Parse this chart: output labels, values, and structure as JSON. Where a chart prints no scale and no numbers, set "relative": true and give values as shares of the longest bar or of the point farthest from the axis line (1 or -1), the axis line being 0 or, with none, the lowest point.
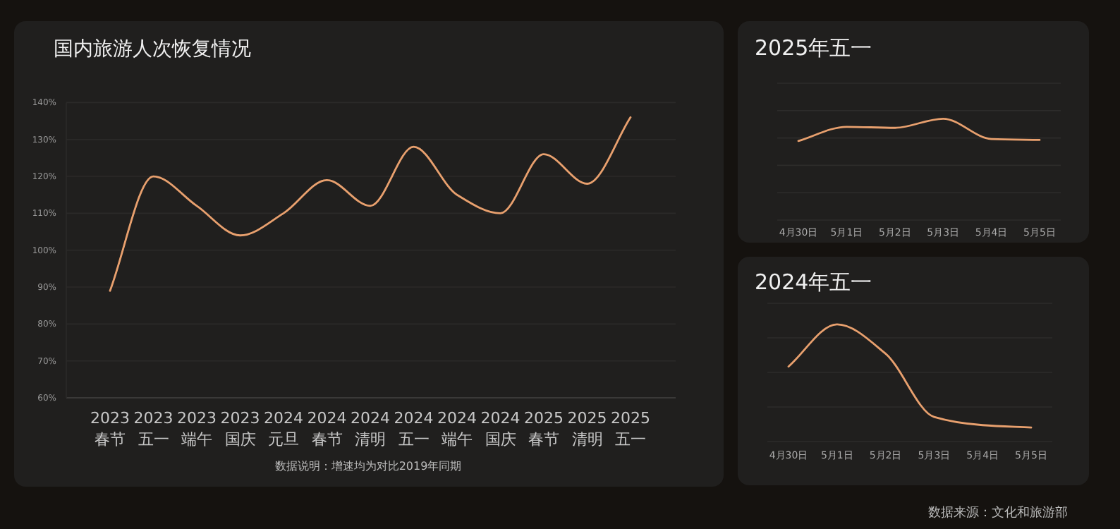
{
  "chart_data": [
    {
      "type": "line",
      "title": "国内旅游人次恢复情况",
      "categories": [
        "2023\n春节",
        "2023\n五一",
        "2023\n端午",
        "2023\n国庆",
        "2024\n元旦",
        "2024\n春节",
        "2024\n清明",
        "2024\n五一",
        "2024\n端午",
        "2024\n国庆",
        "2025\n春节",
        "2025\n清明",
        "2025\n五一"
      ],
      "series": [
        {
          "color": "#e8a06e",
          "values": [
            89,
            120,
            112,
            104,
            110,
            119,
            112,
            128,
            115,
            110,
            126,
            118,
            136
          ]
        }
      ],
      "ylim": [
        60,
        140
      ],
      "yticks": [
        {
          "value": 60,
          "label": "60%"
        },
        {
          "value": 70,
          "label": "70%"
        },
        {
          "value": 80,
          "label": "80%"
        },
        {
          "value": 90,
          "label": "90%"
        },
        {
          "value": 100,
          "label": "100%"
        },
        {
          "value": 110,
          "label": "110%"
        },
        {
          "value": 120,
          "label": "120%"
        },
        {
          "value": 130,
          "label": "130%"
        },
        {
          "value": 140,
          "label": "140%"
        }
      ],
      "grid": "y",
      "marker": "none",
      "line_style": "solid",
      "annotations": [
        "数据说明：增速均为对比2019年同期"
      ]
    },
    {
      "type": "line",
      "title": "2025年五一",
      "relative": true,
      "categories": [
        "4月30日",
        "5月1日",
        "5月2日",
        "5月3日",
        "5月4日",
        "5月5日"
      ],
      "series": [
        {
          "color": "#e8a06e",
          "values": [
            0.78,
            0.92,
            0.91,
            1,
            0.8,
            0.79
          ]
        }
      ],
      "grid": true,
      "marker": "none",
      "line_style": "solid"
    },
    {
      "type": "line",
      "title": "2024年五一",
      "relative": true,
      "categories": [
        "4月30日",
        "5月1日",
        "5月2日",
        "5月3日",
        "5月4日",
        "5月5日"
      ],
      "series": [
        {
          "color": "#e8a06e",
          "values": [
            0.64,
            1,
            0.75,
            0.21,
            0.14,
            0.12
          ]
        }
      ],
      "grid": true,
      "marker": "none",
      "line_style": "solid",
      "annotations": [
        "数据来源：文化和旅游部"
      ]
    }
  ]
}
